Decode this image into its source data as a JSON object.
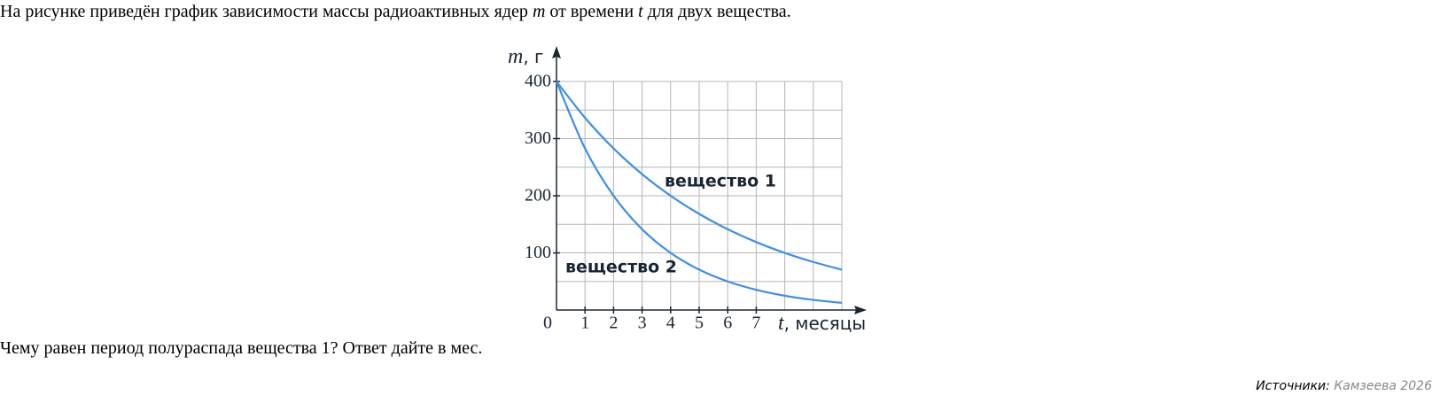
{
  "question": {
    "text_1": "На рисунке приведён график зависимости массы радиоактивных ядер ",
    "var_m": "m",
    "text_2": " от времени ",
    "var_t": "t",
    "text_3": " для двух вещества."
  },
  "chart_data": {
    "type": "line",
    "y_label_symbol": "m",
    "y_label_unit": ", г",
    "x_label_symbol": "t",
    "x_label_unit": ", месяцы",
    "x": [
      0,
      1,
      2,
      3,
      4,
      5,
      6,
      7,
      8,
      9,
      10
    ],
    "series": [
      {
        "name": "вещество 1",
        "color": "#3d8fe8",
        "values": [
          400,
          336.4,
          282.8,
          237.8,
          200,
          168.2,
          141.4,
          118.9,
          100,
          84.1,
          70.7
        ]
      },
      {
        "name": "вещество 2",
        "color": "#3d8fe8",
        "values": [
          400,
          282.8,
          200,
          141.4,
          100,
          70.7,
          50,
          35.4,
          25,
          17.7,
          12.5
        ]
      }
    ],
    "xlim": [
      0,
      10
    ],
    "ylim": [
      0,
      400
    ],
    "xticks": [
      0,
      1,
      2,
      3,
      4,
      5,
      6,
      7
    ],
    "yticks": [
      100,
      200,
      300,
      400
    ],
    "xgrid": [
      0,
      1,
      2,
      3,
      4,
      5,
      6,
      7,
      8,
      9,
      10
    ],
    "ygrid": [
      0,
      50,
      100,
      150,
      200,
      250,
      300,
      350,
      400
    ],
    "grid": true
  },
  "question_2": "Чему равен период полураспада вещества 1? Ответ дайте в мес.",
  "source": {
    "label": "Источники:",
    "value": "Камзеева 2026"
  }
}
